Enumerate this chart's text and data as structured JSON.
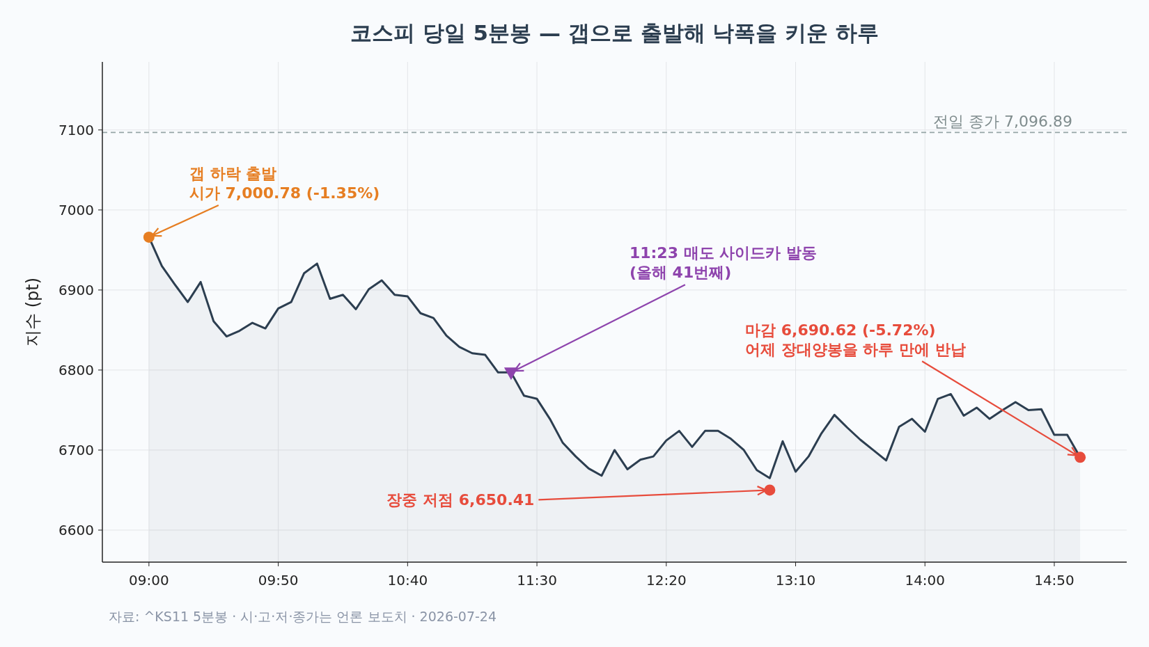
{
  "chart_data": {
    "type": "area",
    "title": "코스피 당일 5분봉 — 갭으로 출발해 낙폭을 키운 하루",
    "ylabel": "지수 (pt)",
    "x": [
      "2026-07-24T09:00",
      "2026-07-24T09:05",
      "2026-07-24T09:10",
      "2026-07-24T09:15",
      "2026-07-24T09:20",
      "2026-07-24T09:25",
      "2026-07-24T09:30",
      "2026-07-24T09:35",
      "2026-07-24T09:40",
      "2026-07-24T09:45",
      "2026-07-24T09:50",
      "2026-07-24T09:55",
      "2026-07-24T10:00",
      "2026-07-24T10:05",
      "2026-07-24T10:10",
      "2026-07-24T10:15",
      "2026-07-24T10:20",
      "2026-07-24T10:25",
      "2026-07-24T10:30",
      "2026-07-24T10:35",
      "2026-07-24T10:40",
      "2026-07-24T10:45",
      "2026-07-24T10:50",
      "2026-07-24T10:55",
      "2026-07-24T11:00",
      "2026-07-24T11:05",
      "2026-07-24T11:10",
      "2026-07-24T11:15",
      "2026-07-24T11:20",
      "2026-07-24T11:25",
      "2026-07-24T11:30",
      "2026-07-24T11:35",
      "2026-07-24T11:40",
      "2026-07-24T11:45",
      "2026-07-24T11:50",
      "2026-07-24T11:55",
      "2026-07-24T12:00",
      "2026-07-24T12:05",
      "2026-07-24T12:10",
      "2026-07-24T12:15",
      "2026-07-24T12:20",
      "2026-07-24T12:25",
      "2026-07-24T12:30",
      "2026-07-24T12:35",
      "2026-07-24T12:40",
      "2026-07-24T12:45",
      "2026-07-24T12:50",
      "2026-07-24T12:55",
      "2026-07-24T13:00",
      "2026-07-24T13:05",
      "2026-07-24T13:10",
      "2026-07-24T13:15",
      "2026-07-24T13:20",
      "2026-07-24T13:25",
      "2026-07-24T13:30",
      "2026-07-24T13:35",
      "2026-07-24T13:40",
      "2026-07-24T13:45",
      "2026-07-24T13:50",
      "2026-07-24T13:55",
      "2026-07-24T14:00",
      "2026-07-24T14:05",
      "2026-07-24T14:10",
      "2026-07-24T14:15",
      "2026-07-24T14:20",
      "2026-07-24T14:25",
      "2026-07-24T14:30",
      "2026-07-24T14:35",
      "2026-07-24T14:40",
      "2026-07-24T14:45",
      "2026-07-24T14:50",
      "2026-07-24T14:55",
      "2026-07-24T15:00"
    ],
    "series": [
      {
        "color": "#2c3e50",
        "values": [
          6966,
          6930,
          6907,
          6885,
          6910,
          6861,
          6842,
          6849,
          6859,
          6852,
          6877,
          6885,
          6921,
          6933,
          6889,
          6894,
          6876,
          6901,
          6912,
          6894,
          6892,
          6871,
          6865,
          6843,
          6829,
          6821,
          6819,
          6797,
          6797,
          6768,
          6764,
          6739,
          6709,
          6692,
          6677,
          6668,
          6700,
          6676,
          6688,
          6692,
          6712,
          6724,
          6704,
          6724,
          6724,
          6714,
          6700,
          6675,
          6665,
          6711,
          6673,
          6692,
          6721,
          6744,
          6728,
          6713,
          6700,
          6687,
          6729,
          6739,
          6723,
          6764,
          6770,
          6743,
          6753,
          6739,
          6750,
          6760,
          6750,
          6751,
          6719,
          6719,
          6691
        ]
      },
      {
        "type": "scatter",
        "color": "#e67e22",
        "marker": "circle",
        "x": [
          "2026-07-24T09:00"
        ],
        "values": [
          6966
        ]
      },
      {
        "type": "scatter",
        "color": "#8e44ad",
        "marker": "triangle",
        "x": [
          "2026-07-24T11:20"
        ],
        "values": [
          6797
        ]
      },
      {
        "type": "scatter",
        "color": "#e74c3c",
        "marker": "circle",
        "x": [
          "2026-07-24T13:00",
          "2026-07-24T15:00"
        ],
        "values": [
          6650,
          6691
        ]
      }
    ],
    "xlim": [
      "2026-07-24T08:42",
      "2026-07-24T15:18"
    ],
    "xticks": [
      {
        "value": "2026-07-24T09:00",
        "label": "09:00"
      },
      {
        "value": "2026-07-24T09:50",
        "label": "09:50"
      },
      {
        "value": "2026-07-24T10:40",
        "label": "10:40"
      },
      {
        "value": "2026-07-24T11:30",
        "label": "11:30"
      },
      {
        "value": "2026-07-24T12:20",
        "label": "12:20"
      },
      {
        "value": "2026-07-24T13:10",
        "label": "13:10"
      },
      {
        "value": "2026-07-24T14:00",
        "label": "14:00"
      },
      {
        "value": "2026-07-24T14:50",
        "label": "14:50"
      }
    ],
    "ylim": [
      6560,
      7185
    ],
    "yticks": [
      6600,
      6700,
      6800,
      6900,
      7000,
      7100
    ],
    "grid": true,
    "ref_lines": [
      {
        "axis": "y",
        "value": 7096.89,
        "label": "전일 종가 7,096.89",
        "color": "#95a5a6",
        "line_style": "dashed"
      }
    ],
    "annotations": [
      {
        "text": "갭 하락 출발\n시가 7,000.78 (-1.35%)",
        "x": "2026-07-24T09:00",
        "y": 6966
      },
      {
        "text": "11:23 매도 사이드카 발동\n(올해 41번째)",
        "x": "2026-07-24T11:20",
        "y": 6797
      },
      {
        "text": "마감 6,690.62 (-5.72%)\n어제 장대양봉을 하루 만에 반납",
        "x": "2026-07-24T15:00",
        "y": 6691
      },
      {
        "text": "장중 저점 6,650.41",
        "x": "2026-07-24T13:00",
        "y": 6650
      },
      "자료: ^KS11 5분봉 · 시·고·저·종가는 언론 보도치 · 2026-07-24"
    ]
  }
}
